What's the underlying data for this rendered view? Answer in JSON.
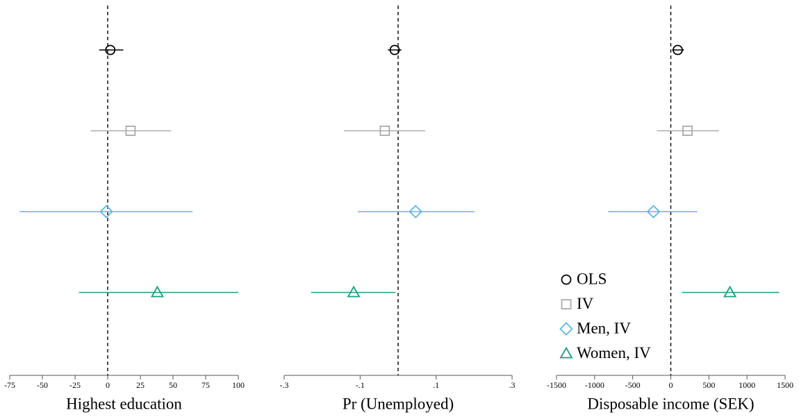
{
  "chart_data": [
    {
      "type": "errorbar",
      "xlabel": "Highest education",
      "xlim": [
        -75,
        100
      ],
      "xticks": [
        -75,
        -50,
        -25,
        0,
        25,
        50,
        75,
        100
      ],
      "refline": 0,
      "series": [
        {
          "color": "#000000",
          "marker": "circle",
          "value": 2,
          "ci_low": -6.5,
          "ci_high": 12
        },
        {
          "color": "#aaaaaa",
          "marker": "square",
          "value": 17.5,
          "ci_low": -13,
          "ci_high": 48.5
        },
        {
          "color": "#5bb8e0",
          "marker": "diamond",
          "value": -1,
          "ci_low": -67.5,
          "ci_high": 65
        },
        {
          "color": "#1a9e7e",
          "marker": "triangle",
          "value": 38,
          "ci_low": -22,
          "ci_high": 100
        }
      ]
    },
    {
      "type": "errorbar",
      "xlabel": "Pr (Unemployed)",
      "xlim": [
        -0.3,
        0.3
      ],
      "xticks": [
        {
          "value": -0.3,
          "label": "-.3"
        },
        {
          "value": -0.1,
          "label": "-.1"
        },
        {
          "value": 0.1,
          "label": ".1"
        },
        {
          "value": 0.3,
          "label": ".3"
        }
      ],
      "refline": 0,
      "series": [
        {
          "color": "#000000",
          "marker": "circle",
          "value": -0.009,
          "ci_low": -0.027,
          "ci_high": 0.009
        },
        {
          "color": "#aaaaaa",
          "marker": "square",
          "value": -0.035,
          "ci_low": -0.143,
          "ci_high": 0.071
        },
        {
          "color": "#5bb8e0",
          "marker": "diamond",
          "value": 0.046,
          "ci_low": -0.106,
          "ci_high": 0.201
        },
        {
          "color": "#1a9e7e",
          "marker": "triangle",
          "value": -0.117,
          "ci_low": -0.229,
          "ci_high": -0.007
        }
      ]
    },
    {
      "type": "errorbar",
      "xlabel": "Disposable income (SEK)",
      "xlim": [
        -1500,
        1500
      ],
      "xticks": [
        -1500,
        -1000,
        -500,
        0,
        500,
        1000,
        1500
      ],
      "refline": 0,
      "legend": "lower left",
      "series": [
        {
          "name": "OLS",
          "color": "#000000",
          "marker": "circle",
          "value": 91,
          "ci_low": 18,
          "ci_high": 173
        },
        {
          "name": "IV",
          "color": "#aaaaaa",
          "marker": "square",
          "value": 219,
          "ci_low": -182,
          "ci_high": 630
        },
        {
          "name": "Men, IV",
          "color": "#5bb8e0",
          "marker": "diamond",
          "value": -228,
          "ci_low": -821,
          "ci_high": 347
        },
        {
          "name": "Women, IV",
          "color": "#1a9e7e",
          "marker": "triangle",
          "value": 776,
          "ci_low": 146,
          "ci_high": 1423
        }
      ]
    }
  ]
}
